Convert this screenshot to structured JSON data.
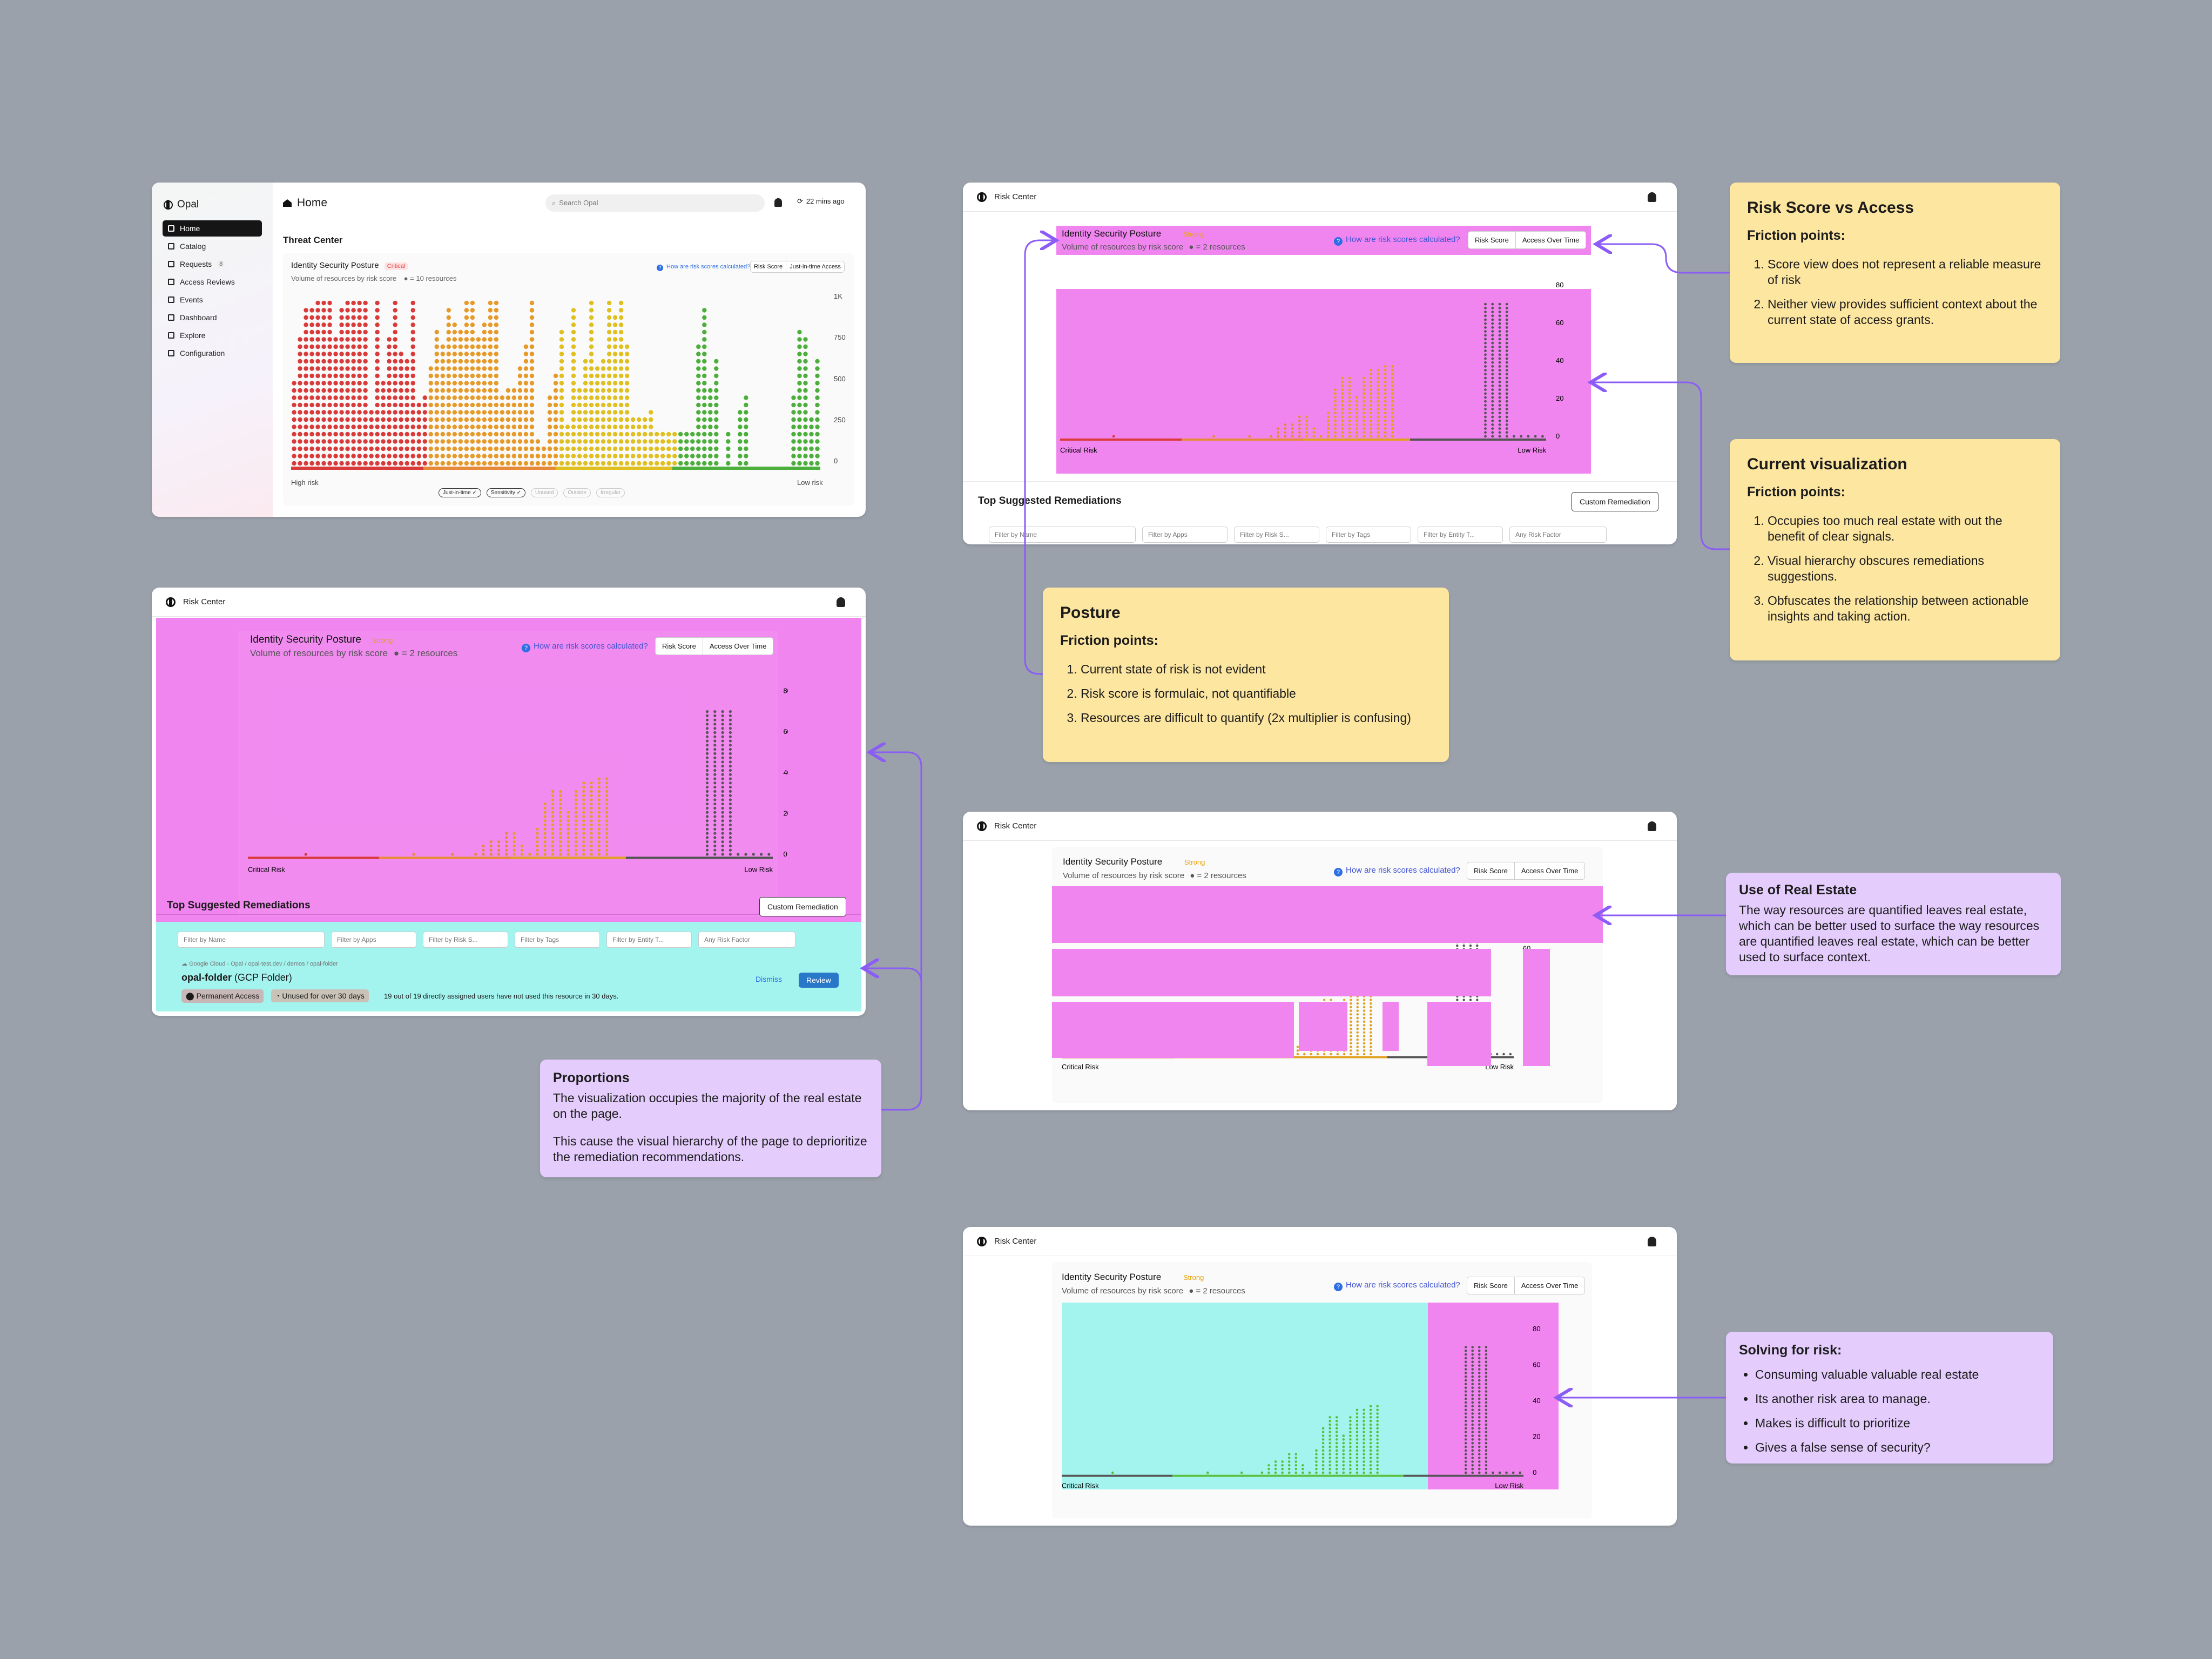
{
  "home": {
    "logo": "Opal",
    "title": "Home",
    "search_placeholder": "Search Opal",
    "updated": "22 mins ago",
    "nav": [
      {
        "label": "Home",
        "icon": "home-icon",
        "active": true
      },
      {
        "label": "Catalog",
        "icon": "grid-icon"
      },
      {
        "label": "Requests",
        "icon": "request-icon",
        "badge": "8"
      },
      {
        "label": "Access Reviews",
        "icon": "pen-icon"
      },
      {
        "label": "Events",
        "icon": "pulse-icon"
      },
      {
        "label": "Dashboard",
        "icon": "chart-icon"
      },
      {
        "label": "Explore",
        "icon": "explore-icon"
      },
      {
        "label": "Configuration",
        "icon": "gear-icon"
      }
    ],
    "section": "Threat Center",
    "posture_title": "Identity Security Posture",
    "posture_badge": "Critical",
    "posture_sub": "Volume of resources by risk score",
    "posture_unit": "● = 10 resources",
    "how_link": "How are risk scores calculated?",
    "tab1": "Risk Score",
    "tab2": "Just-in-time Access",
    "y_ticks": [
      "1K",
      "750",
      "500",
      "250",
      "0"
    ],
    "x_left": "High risk",
    "x_right": "Low risk",
    "chips": [
      "Just-in-time ✓",
      "Sensitivity ✓",
      "Unused",
      "Outside",
      "Irregular"
    ]
  },
  "risk_center": {
    "header": "Risk Center",
    "posture_title": "Identity Security Posture",
    "posture_badge": "Strong",
    "posture_sub": "Volume of resources by risk score",
    "posture_unit": "● = 2 resources",
    "how_link": "How are risk scores calculated?",
    "tab1": "Risk Score",
    "tab2": "Access Over Time",
    "y_ticks": [
      "80",
      "60",
      "40",
      "20",
      "0"
    ],
    "x_left": "Critical Risk",
    "x_right": "Low Risk",
    "remediations_title": "Top Suggested Remediations",
    "custom_btn": "Custom Remediation",
    "filters": [
      "Filter by Name",
      "Filter by Apps",
      "Filter by Risk S...",
      "Filter by Tags",
      "Filter by Entity T...",
      "Any Risk Factor"
    ],
    "resource_path": "Google Cloud - Opal / opal-test.dev / demos / opal-folder",
    "resource_name": "opal-folder",
    "resource_type": "(GCP Folder)",
    "tag1": "Permanent Access",
    "tag2": "Unused for over 30 days",
    "resource_desc": "19 out of 19 directly assigned users have not used this resource in 30 days.",
    "dismiss": "Dismiss",
    "review": "Review"
  },
  "notes": {
    "risk_vs_access": {
      "title": "Risk Score vs Access",
      "sub": "Friction points:",
      "items": [
        "Score view does not represent a reliable measure of risk",
        "Neither view provides sufficient context about the current state of access grants."
      ]
    },
    "current_viz": {
      "title": "Current visualization",
      "sub": "Friction points:",
      "items": [
        "Occupies too much real estate with out the benefit of clear signals.",
        "Visual hierarchy obscures remediations suggestions.",
        "Obfuscates the relationship between actionable insights and taking action."
      ]
    },
    "posture": {
      "title": "Posture",
      "sub": "Friction points:",
      "items": [
        "Current state of risk is not evident",
        "Risk score is formulaic, not quantifiable",
        "Resources are difficult to quantify (2x multiplier is confusing)"
      ]
    },
    "proportions": {
      "title": "Proportions",
      "p1": "The visualization occupies the majority of the real estate on the page.",
      "p2": "This cause the visual hierarchy of the page to deprioritize the remediation recommendations."
    },
    "real_estate": {
      "title": "Use of Real Estate",
      "body": "The way resources are quantified leaves real estate, which can be better used to surface  the way resources are quantified leaves real estate, which can be better used to surface context."
    },
    "solving": {
      "title": "Solving for risk:",
      "items": [
        "Consuming valuable valuable real estate",
        "Its another risk area to manage.",
        "Makes is difficult to prioritize",
        "Gives a false sense of security?"
      ]
    }
  },
  "colors": {
    "pink": "#f185f0",
    "cyan": "#a3f4ef",
    "yellow_note": "#fde6a0",
    "purple_note": "#e4ccfc",
    "connector": "#8b5cf6"
  },
  "dot_columns": {
    "home": [
      12,
      18,
      22,
      22,
      23,
      23,
      23,
      18,
      22,
      23,
      23,
      23,
      23,
      8,
      23,
      12,
      18,
      23,
      16,
      15,
      23,
      9,
      10,
      14,
      19,
      17,
      22,
      20,
      19,
      23,
      23,
      18,
      20,
      23,
      23,
      10,
      11,
      11,
      14,
      17,
      23,
      4,
      3,
      10,
      13,
      19,
      6,
      22,
      11,
      15,
      23,
      14,
      15,
      23,
      21,
      23,
      17,
      7,
      7,
      7,
      8,
      5,
      5,
      5,
      5,
      5,
      5,
      5,
      17,
      22,
      11,
      15,
      0,
      5,
      0,
      8,
      10,
      0,
      0,
      0,
      0,
      0,
      0,
      0,
      10,
      19,
      18,
      7,
      15
    ],
    "rc": [
      0,
      0,
      0,
      0,
      0,
      0,
      0,
      1,
      0,
      0,
      0,
      0,
      0,
      0,
      0,
      0,
      0,
      0,
      0,
      0,
      0,
      1,
      0,
      0,
      0,
      0,
      1,
      0,
      0,
      1,
      3,
      4,
      4,
      6,
      6,
      3,
      1,
      7,
      13,
      16,
      16,
      11,
      16,
      18,
      18,
      19,
      19,
      0,
      0,
      0,
      0,
      0,
      0,
      0,
      0,
      0,
      0,
      0,
      0,
      35,
      35,
      35,
      35,
      1,
      1,
      1,
      1,
      1
    ]
  }
}
